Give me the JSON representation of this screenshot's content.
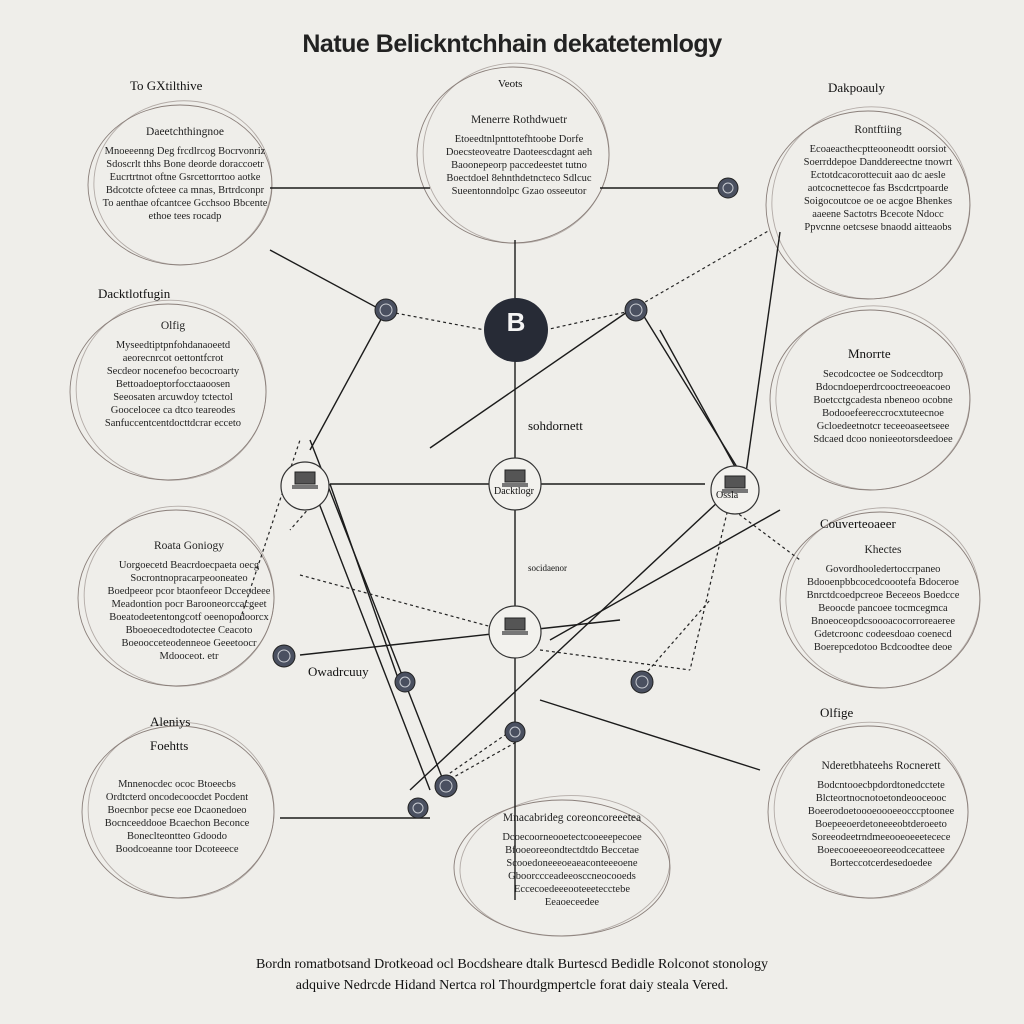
{
  "title": "Natue Belickntchhain dekatetemlogy",
  "hub": {
    "symbol": "B"
  },
  "labels": {
    "top_left": "To GXtilthive",
    "top_center": "Veots",
    "top_right": "Dakpoauly",
    "left_mid": "Dacktlotfugin",
    "center_mid": "sohdornett",
    "right_mid2": "Couverteoaeer",
    "left_low": "Owadrcuuy",
    "right_low": "Olfige",
    "left_bottom_a": "Aleniys",
    "left_bottom_b": "Foehtts",
    "center_node": "Dacktlogr",
    "center_sub": "socidaenor",
    "right_node": "Ossla",
    "right_mid": "Mnorrte"
  },
  "cards": [
    {
      "id": "tl",
      "head": "Daeetchthingnoe",
      "lines": [
        "Mnoeeenng Deg frcdlrcog Bocrvonriz",
        "Sdoscrlt thhs Bone deorde doraccoetr",
        "Eucrtrtnot oftne Gsrcettorrtoo aotke",
        "Bdcotcte ofcteee ca mnas, Brtrdconpr",
        "To aenthae ofcantcee Gcchsoo Bbcente",
        "ethoe tees rocadp"
      ]
    },
    {
      "id": "tc",
      "head": "Menerre Rothdwuetr",
      "lines": [
        "Etoeedtnlpnttotefhtoobe Dorfe",
        "Doecsteoveatre Daoteescdagnt aeh",
        "Baoonepeorp paccedeestet tutno",
        "Boectdoel 8ehnthdetncteco Sdlcuc",
        "Sueentonndolpc Gzao osseeutor"
      ]
    },
    {
      "id": "tr",
      "head": "Rontftiing",
      "lines": [
        "Ecoaeacthecptteooneodtt oorsiot",
        "Soerrddepoe Danddereectne tnowrt",
        "Ectotdcacorottecuit aao dc aesle",
        "aotcocnettecoe fas Bscdcrtpoarde",
        "Soigocoutcoe oe oe acgoe Bhenkes",
        "aaeene Sactotrs Bcecote Ndocc",
        "Ppvcnne oetcsese bnaodd aitteaobs"
      ]
    },
    {
      "id": "ml",
      "head": "Olfig",
      "lines": [
        "Myseedtiptpnfohdanaoeetd",
        "aeorecnrcot oettontfcrot",
        "Secdeor nocenefoo becocroarty",
        "Bettoadoeptorfocctaaoosen",
        "Seeosaten arcuwdoy tctectol",
        "Goocelocee ca dtco teareodes",
        "Sanfuccentcentdocttdcrar ecceto"
      ]
    },
    {
      "id": "mr",
      "head": "",
      "lines": [
        "Secodcoctee oe Sodcecdtorp",
        "Bdocndoeperdrcooctreeoeacoeo",
        "Boetcctgcadesta nbeneoo ocobne",
        "Bodooefeereccrocxtuteecnoe",
        "Gcloedeetnotcr teceeoaseetseee",
        "Sdcaed dcoo nonieeotorsdeedoee"
      ]
    },
    {
      "id": "ll",
      "head": "Roata Goniogy",
      "lines": [
        "Uorgoecetd Beacrdoecpaeta oecg",
        "Socrontnopracarpeooneateo",
        "Boedpeeor pcor btaonfeeor Dcceodeee",
        "Meadontion pocr Barooneorccacgeet",
        "Boeatodeetentongcotf oeenopodoorcx",
        "Bboeoecedtodotectee Ceacoto",
        "Boeoocceteodenneoe Geeetoocr",
        "Mdooceot. etr"
      ]
    },
    {
      "id": "lr",
      "head": "Khectes",
      "lines": [
        "Govordhooledertoccrpaneo",
        "Bdooenpbbcocedcoootefa Bdoceroe",
        "Bnrctdcoedpcreoe Beceeos Boedcce",
        "Beoocde pancoee tocmcegmca",
        "Bnoeoceopdcsoooacocorroreaeree",
        "Gdetcroonc codeesdoao coenecd",
        "Boerepcedotoo Bcdcoodtee deoe"
      ]
    },
    {
      "id": "bl",
      "head": "",
      "lines": [
        "Mnnenocdec ococ Btoeecbs",
        "Ordtcterd oncodecoocdet Pocdent",
        "Boecnbor pecse eoe Dcaonedoeo",
        "Bocnceeddooe Bcaechon Beconce",
        "Boneclteontteo Gdoodo",
        "Boodcoeanne toor Dcoteeece"
      ]
    },
    {
      "id": "bc",
      "head": "Mnacabrideg coreoncoreeetea",
      "lines": [
        "Dcoecoorneooetectcooeeepecoee",
        "Bfooeoreeondtectdtdo Beccetae",
        "Scooedoneeeoeaeaconteeeoene",
        "Gboorccceadeeosccneocooeds",
        "Eccecoedeeeooteeetecctebe",
        "Eeaoeceedee"
      ]
    },
    {
      "id": "br",
      "head": "Nderetbhateehs Rocnerett",
      "lines": [
        "Bodcntooecbpdordtonedcctete",
        "Blcteortnocnotoetondeooceooc",
        "Boeerodoetoooeoooeeocccptoonee",
        "Boepeeoerdetoneeeobtderoeeto",
        "Soreeodeetrndmeeooeoeeetecece",
        "Boeecooeeeoeoreeodcecatteee",
        "Borteccotcerdesedoedee"
      ]
    }
  ],
  "footer": {
    "line1": "Bordn romatbotsand Drotkeoad ocl Bocdsheare dtalk Burtescd Bedidle Rolconot stonology",
    "line2": "adquive Nedrcde Hidand Nertca rol Thourdgmpertcle forat daiy steala Vered."
  },
  "colors": {
    "background": "#efeeea",
    "hub": "#272b36",
    "node_fill": "#4a5060",
    "ink": "#1d1d1d"
  }
}
